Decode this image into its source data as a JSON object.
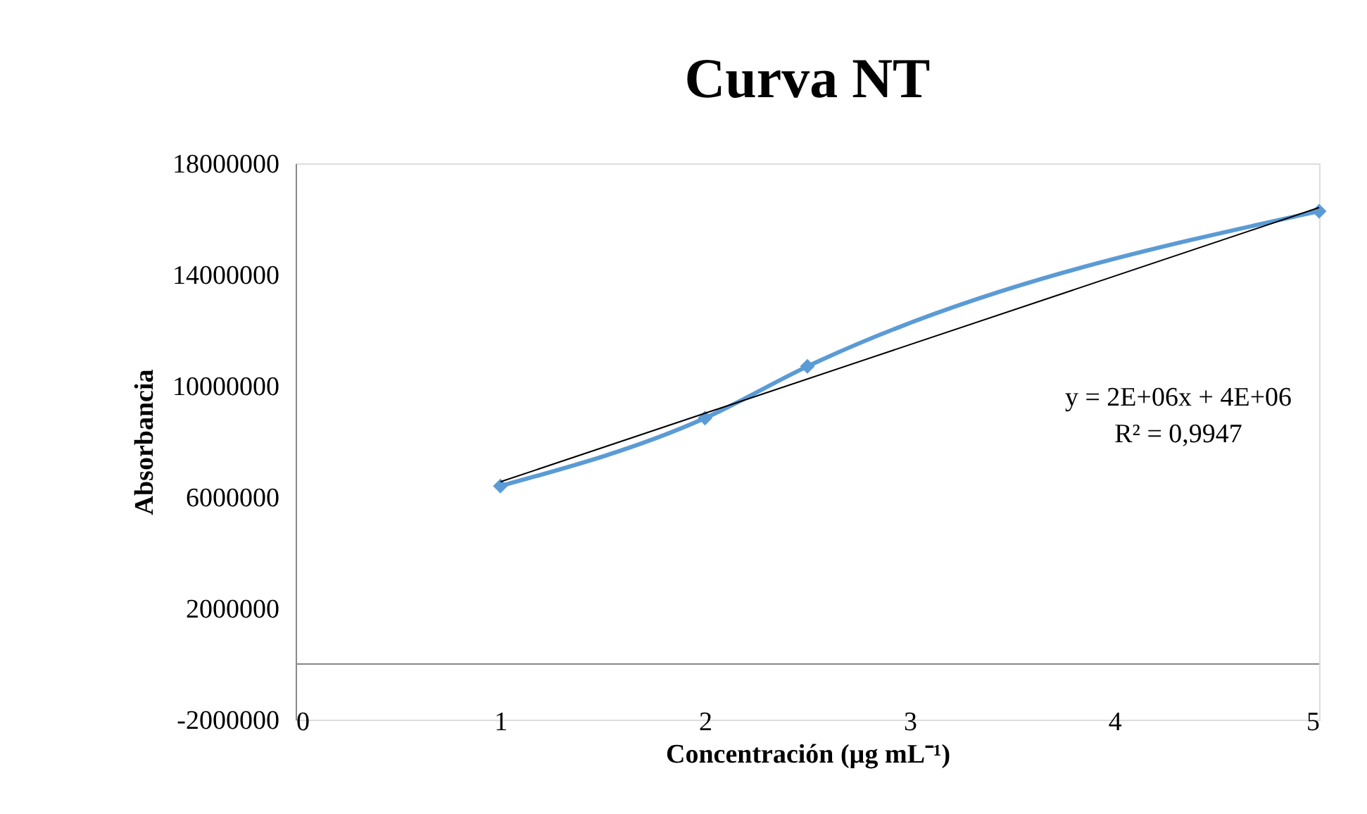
{
  "chart_data": {
    "type": "line",
    "title": "Curva NT",
    "xlabel": "Concentración (µg mL⁻¹)",
    "ylabel": "Absorbancia",
    "xlim": [
      0,
      5
    ],
    "xticks": [
      0,
      1,
      2,
      3,
      4,
      5
    ],
    "ylim": [
      -2000000,
      18000000
    ],
    "yticks": [
      -2000000,
      2000000,
      6000000,
      10000000,
      14000000,
      18000000
    ],
    "grid": false,
    "series": [
      {
        "color": "#5b9bd5",
        "marker": "diamond",
        "x": [
          1,
          2,
          2.5,
          5
        ],
        "values": [
          6400000,
          8840000,
          10700000,
          16280000
        ]
      },
      {
        "color": "#000000",
        "marker": "none",
        "x": [
          1,
          5
        ],
        "values": [
          6550000,
          16410000
        ]
      }
    ],
    "annotations": [
      "y = 2E+06x + 4E+06",
      "R² = 0,9947"
    ]
  }
}
